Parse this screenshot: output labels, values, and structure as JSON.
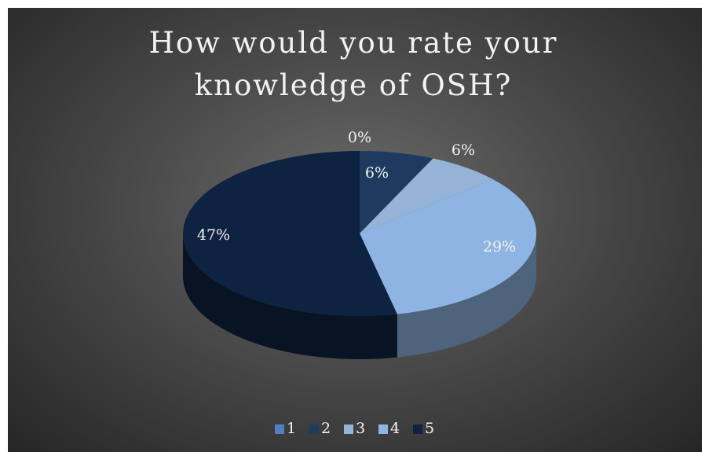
{
  "chart_data": {
    "type": "pie",
    "title": "How would you rate your knowledge of OSH?",
    "categories": [
      "1",
      "2",
      "3",
      "4",
      "5"
    ],
    "values": [
      0,
      6,
      6,
      29,
      47
    ],
    "value_labels": [
      "0%",
      "6%",
      "6%",
      "29%",
      "47%"
    ],
    "colors": [
      "#4f81bd",
      "#1f3a5f",
      "#95b3d7",
      "#8db4e2",
      "#0e2241"
    ],
    "legend": "bottom"
  }
}
